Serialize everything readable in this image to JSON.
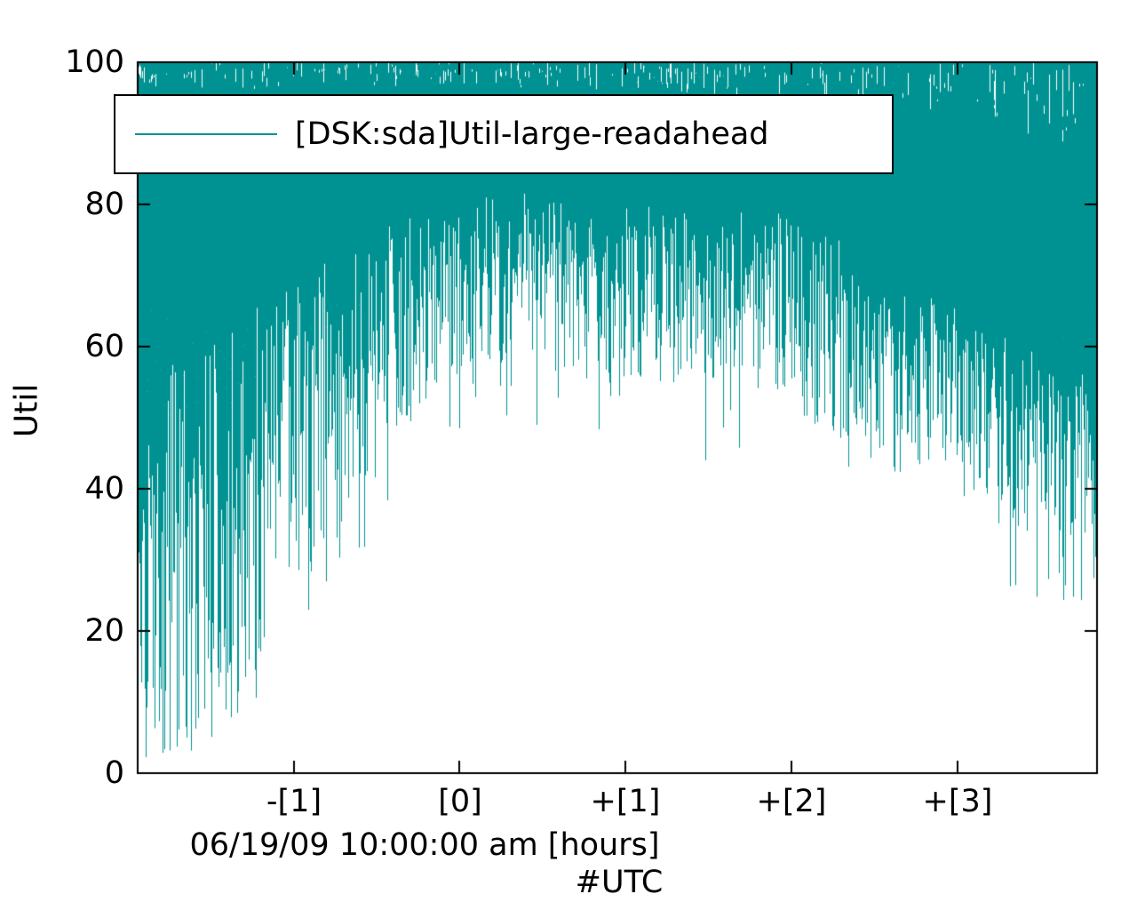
{
  "chart_data": {
    "type": "line",
    "title": "",
    "ylabel": "Util",
    "xlabel": "06/19/09 10:00:00 am [hours]",
    "xlabel2": "#UTC",
    "legend": [
      {
        "label": "[DSK:sda]Util-large-readahead",
        "color": "#009292"
      }
    ],
    "series_color": "#009292",
    "axis_color": "#000000",
    "background": "#ffffff",
    "grid": false,
    "legend_position": "top-left-inside",
    "x_range": [
      -1.94,
      3.84
    ],
    "y_range": [
      0,
      100
    ],
    "y_ticks": [
      0,
      20,
      40,
      60,
      80,
      100
    ],
    "x_ticks": [
      {
        "x": -1,
        "label": "-[1]"
      },
      {
        "x": 0,
        "label": "[0]"
      },
      {
        "x": 1,
        "label": "+[1]"
      },
      {
        "x": 2,
        "label": "+[2]"
      },
      {
        "x": 3,
        "label": "+[3]"
      }
    ],
    "description": "Disk utilization (%) over ~5.8 hours; dense high-frequency spikes mostly reaching 100, with the lower envelope rising from ~2% at the far left to ~55-60% near hour 0, dipping occasionally to 20-40% between +1 and +2.5, and broadening to ~25-60% lows after +3.",
    "envelope": [
      {
        "x": -1.94,
        "low_min": 2,
        "low_max": 55,
        "deep": 2,
        "p_deep": 0.15,
        "top_jitter": 4
      },
      {
        "x": -1.6,
        "low_min": 5,
        "low_max": 60,
        "deep": 3,
        "p_deep": 0.12,
        "top_jitter": 4
      },
      {
        "x": -1.3,
        "low_min": 13,
        "low_max": 65,
        "deep": 8,
        "p_deep": 0.1,
        "top_jitter": 4
      },
      {
        "x": -1.0,
        "low_min": 22,
        "low_max": 70,
        "deep": 15,
        "p_deep": 0.08,
        "top_jitter": 4
      },
      {
        "x": -0.7,
        "low_min": 35,
        "low_max": 74,
        "deep": 25,
        "p_deep": 0.06,
        "top_jitter": 4
      },
      {
        "x": -0.4,
        "low_min": 48,
        "low_max": 78,
        "deep": 40,
        "p_deep": 0.05,
        "top_jitter": 4
      },
      {
        "x": -0.1,
        "low_min": 55,
        "low_max": 80,
        "deep": 48,
        "p_deep": 0.05,
        "top_jitter": 4
      },
      {
        "x": 0.3,
        "low_min": 58,
        "low_max": 82,
        "deep": 50,
        "p_deep": 0.05,
        "top_jitter": 4
      },
      {
        "x": 0.7,
        "low_min": 55,
        "low_max": 80,
        "deep": 37,
        "p_deep": 0.03,
        "top_jitter": 4
      },
      {
        "x": 1.0,
        "low_min": 52,
        "low_max": 80,
        "deep": 30,
        "p_deep": 0.03,
        "top_jitter": 4
      },
      {
        "x": 1.4,
        "low_min": 55,
        "low_max": 80,
        "deep": 32,
        "p_deep": 0.03,
        "top_jitter": 5
      },
      {
        "x": 1.8,
        "low_min": 55,
        "low_max": 80,
        "deep": 45,
        "p_deep": 0.04,
        "top_jitter": 5
      },
      {
        "x": 2.0,
        "low_min": 50,
        "low_max": 78,
        "deep": 22,
        "p_deep": 0.02,
        "top_jitter": 5
      },
      {
        "x": 2.3,
        "low_min": 47,
        "low_max": 75,
        "deep": 40,
        "p_deep": 0.05,
        "top_jitter": 6
      },
      {
        "x": 2.6,
        "low_min": 45,
        "low_max": 68,
        "deep": 40,
        "p_deep": 0.08,
        "top_jitter": 7
      },
      {
        "x": 3.0,
        "low_min": 44,
        "low_max": 66,
        "deep": 38,
        "p_deep": 0.08,
        "top_jitter": 8
      },
      {
        "x": 3.3,
        "low_min": 36,
        "low_max": 62,
        "deep": 25,
        "p_deep": 0.08,
        "top_jitter": 10
      },
      {
        "x": 3.6,
        "low_min": 30,
        "low_max": 58,
        "deep": 23,
        "p_deep": 0.1,
        "top_jitter": 12
      },
      {
        "x": 3.84,
        "low_min": 32,
        "low_max": 58,
        "deep": 24,
        "p_deep": 0.1,
        "top_jitter": 12
      }
    ]
  }
}
